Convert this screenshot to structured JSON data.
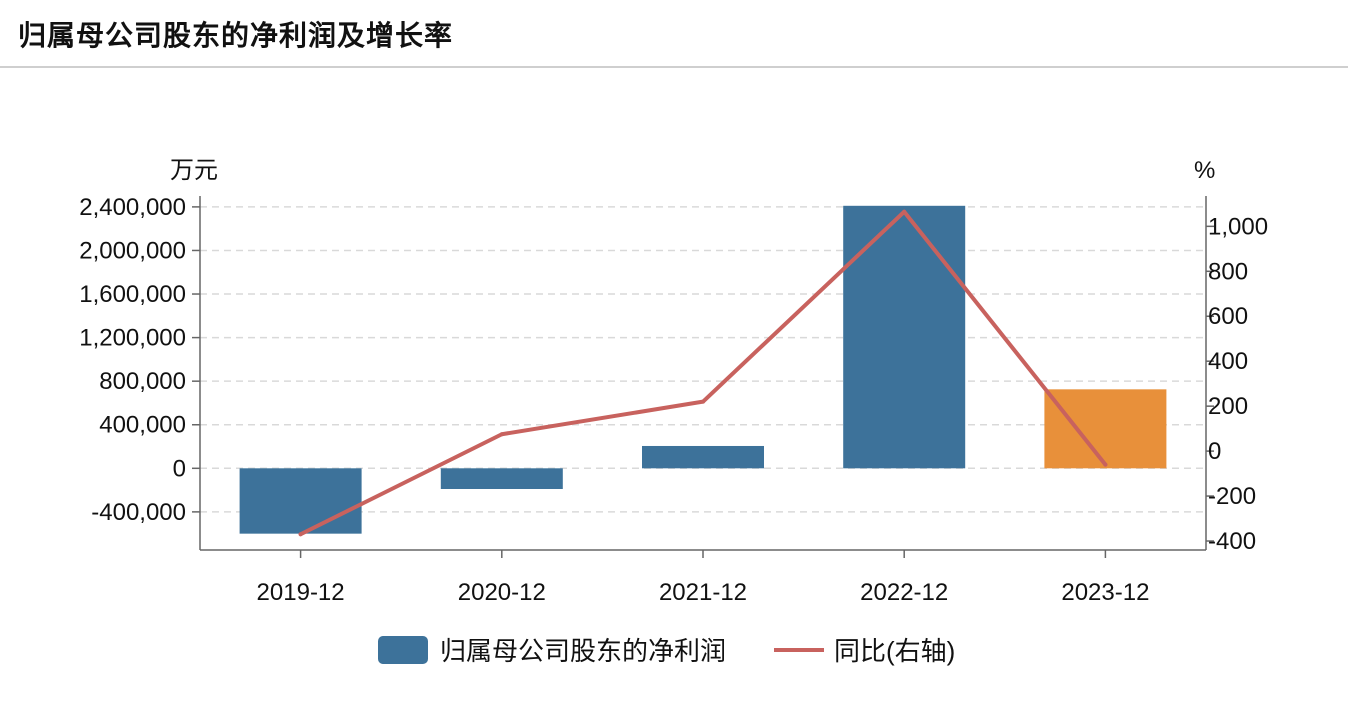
{
  "page_title": "归属母公司股东的净利润及增长率",
  "chart_data": {
    "type": "bar",
    "categories": [
      "2019-12",
      "2020-12",
      "2021-12",
      "2022-12",
      "2023-12"
    ],
    "series": [
      {
        "name": "归属母公司股东的净利润",
        "type": "bar",
        "axis": "left",
        "values": [
          -600000,
          -190000,
          205000,
          2410000,
          725000
        ],
        "colors": [
          "#3d729a",
          "#3d729a",
          "#3d729a",
          "#3d729a",
          "#e8903a"
        ]
      },
      {
        "name": "同比(右轴)",
        "type": "line",
        "axis": "right",
        "color": "#c8625e",
        "values": [
          -370,
          75,
          220,
          1065,
          -60
        ]
      }
    ],
    "left_axis": {
      "unit": "万元",
      "range": [
        -750000,
        2500000
      ],
      "ticks": [
        -400000,
        0,
        400000,
        800000,
        1200000,
        1600000,
        2000000,
        2400000
      ],
      "tick_labels": [
        "-400,000",
        "0",
        "400,000",
        "800,000",
        "1,200,000",
        "1,600,000",
        "2,000,000",
        "2,400,000"
      ]
    },
    "right_axis": {
      "unit": "%",
      "range": [
        -440,
        1135
      ],
      "ticks": [
        -400,
        -200,
        0,
        200,
        400,
        600,
        800,
        1000
      ],
      "tick_labels": [
        "-400",
        "-200",
        "0",
        "200",
        "400",
        "600",
        "800",
        "1,000"
      ]
    },
    "grid": true,
    "legend_position": "bottom"
  }
}
